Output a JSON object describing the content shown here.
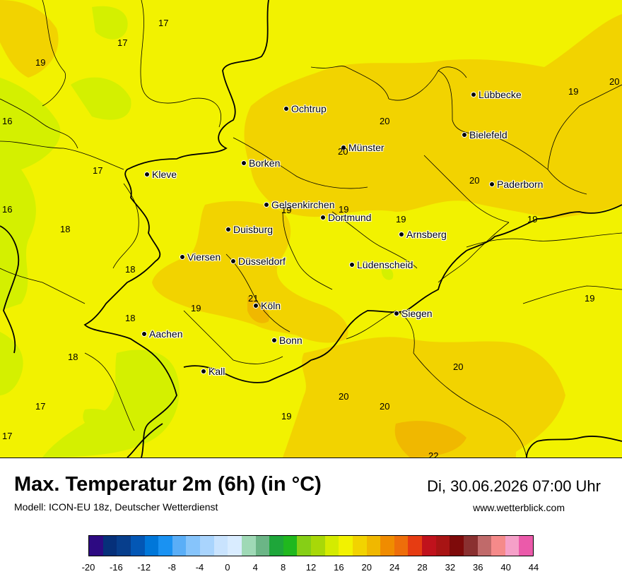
{
  "title": "Max. Temperatur 2m (6h) (in °C)",
  "subtitle": "Modell: ICON-EU 18z, Deutscher Wetterdienst",
  "datetime": "Di, 30.06.2026 07:00 Uhr",
  "website": "www.wetterblick.com",
  "colors": {
    "temp_16_18": "#d4f000",
    "temp_18_20": "#f2f200",
    "temp_20_22": "#f2d300",
    "temp_22_24": "#f0b800",
    "border": "#000000"
  },
  "cities": [
    {
      "name": "Lübbecke"
    },
    {
      "name": "Ochtrup"
    },
    {
      "name": "Bielefeld"
    },
    {
      "name": "Münster"
    },
    {
      "name": "Kleve"
    },
    {
      "name": "Borken"
    },
    {
      "name": "Paderborn"
    },
    {
      "name": "Gelsenkirchen"
    },
    {
      "name": "Dortmund"
    },
    {
      "name": "Duisburg"
    },
    {
      "name": "Arnsberg"
    },
    {
      "name": "Viersen"
    },
    {
      "name": "Düsseldorf"
    },
    {
      "name": "Lüdenscheid"
    },
    {
      "name": "Köln"
    },
    {
      "name": "Siegen"
    },
    {
      "name": "Aachen"
    },
    {
      "name": "Bonn"
    },
    {
      "name": "Kall"
    }
  ],
  "values": [
    "17",
    "17",
    "19",
    "19",
    "20",
    "16",
    "20",
    "20",
    "17",
    "20",
    "16",
    "19",
    "19",
    "19",
    "18",
    "19",
    "19",
    "18",
    "21",
    "18",
    "19",
    "18",
    "18",
    "20",
    "20",
    "20",
    "17",
    "19",
    "17",
    "22"
  ],
  "scale": {
    "tick_labels": [
      "-20",
      "-16",
      "-12",
      "-8",
      "-4",
      "0",
      "4",
      "8",
      "12",
      "16",
      "20",
      "24",
      "28",
      "32",
      "36",
      "40",
      "44"
    ],
    "colors": [
      "#2d0a82",
      "#06307a",
      "#073e8c",
      "#0357b5",
      "#0077d9",
      "#1a92f2",
      "#5aaef7",
      "#86c4fb",
      "#a9d4fd",
      "#c9e3fe",
      "#d9ecff",
      "#9fd9b6",
      "#6bb586",
      "#1ea63a",
      "#20b81e",
      "#86cf16",
      "#a8d808",
      "#d4eb00",
      "#f2f200",
      "#f2d300",
      "#f0b800",
      "#f08c00",
      "#ee6e0a",
      "#e63c12",
      "#c0121c",
      "#a81414",
      "#7e0a0a",
      "#8a3030",
      "#c06a6a",
      "#f58a8a",
      "#f5a0c8",
      "#eb5aaa"
    ]
  }
}
